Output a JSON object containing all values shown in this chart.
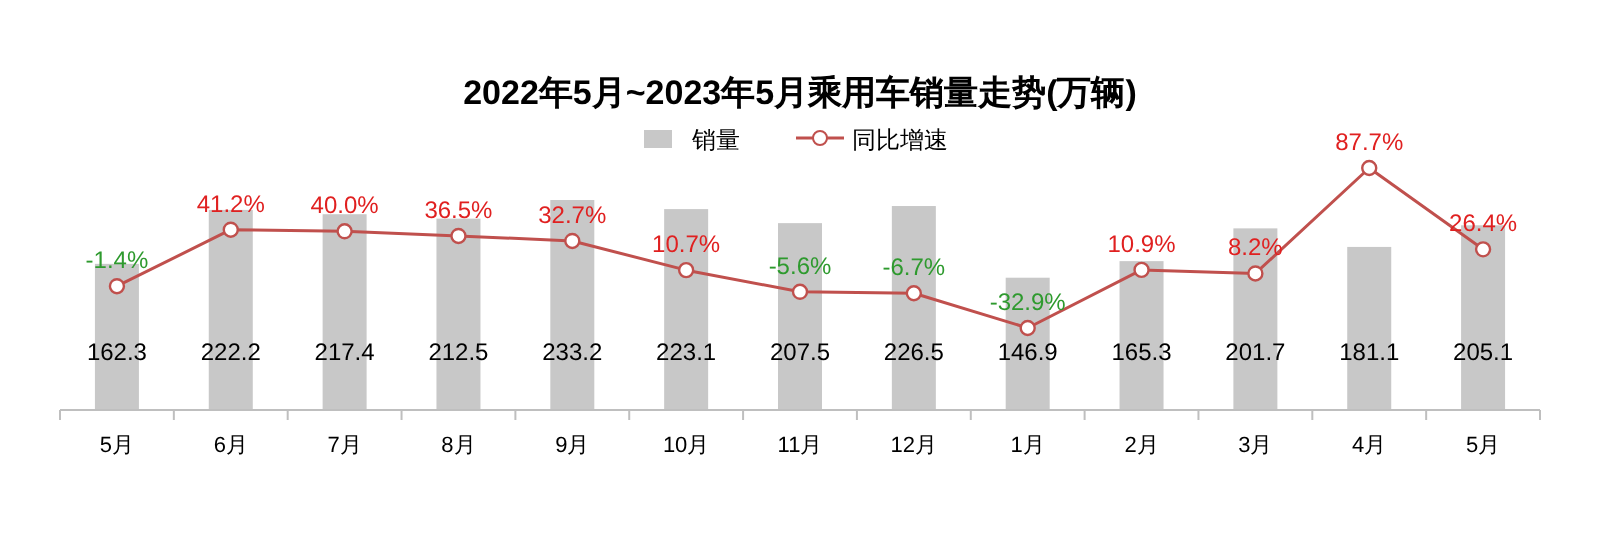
{
  "chart_data": {
    "type": "bar",
    "title": "2022年5月~2023年5月乘用车销量走势(万辆)",
    "categories": [
      "5月",
      "6月",
      "7月",
      "8月",
      "9月",
      "10月",
      "11月",
      "12月",
      "1月",
      "2月",
      "3月",
      "4月",
      "5月"
    ],
    "series": [
      {
        "name": "销量",
        "color": "#c8c8c8",
        "values": [
          162.3,
          222.2,
          217.4,
          212.5,
          233.2,
          223.1,
          207.5,
          226.5,
          146.9,
          165.3,
          201.7,
          181.1,
          205.1
        ]
      },
      {
        "name": "同比增速",
        "type": "line",
        "axis": "y2",
        "color": "#c0504d",
        "marker": "circle",
        "values": [
          -1.4,
          41.2,
          40.0,
          36.5,
          32.7,
          10.7,
          -5.6,
          -6.7,
          -32.9,
          10.9,
          8.2,
          87.7,
          26.4
        ],
        "value_labels": [
          "-1.4%",
          "41.2%",
          "40.0%",
          "36.5%",
          "32.7%",
          "10.7%",
          "-5.6%",
          "-6.7%",
          "-32.9%",
          "10.9%",
          "8.2%",
          "87.7%",
          "26.4%"
        ]
      }
    ],
    "data_labels": true,
    "legend": "top",
    "grid": false
  }
}
